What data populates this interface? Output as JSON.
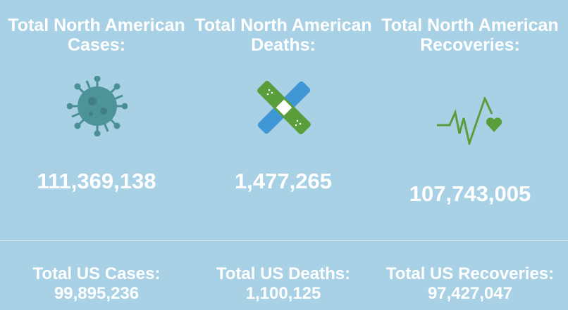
{
  "north_america": {
    "cases": {
      "label": "Total North American Cases:",
      "value": "111,369,138",
      "icon": "virus-icon"
    },
    "deaths": {
      "label": "Total North American Deaths:",
      "value": "1,477,265",
      "icon": "bandage-icon"
    },
    "recoveries": {
      "label": "Total North American Recoveries:",
      "value": "107,743,005",
      "icon": "heartbeat-icon"
    }
  },
  "us": {
    "cases": {
      "label": "Total US Cases:",
      "value": "99,895,236"
    },
    "deaths": {
      "label": "Total US Deaths:",
      "value": "1,100,125"
    },
    "recoveries": {
      "label": "Total US Recoveries:",
      "value": "97,427,047"
    }
  },
  "colors": {
    "background": "#a8d1e6",
    "virus": "#4a8f93",
    "bandage_green": "#5a9e3c",
    "bandage_blue": "#3f97d6",
    "heartbeat": "#5a9e3c"
  }
}
